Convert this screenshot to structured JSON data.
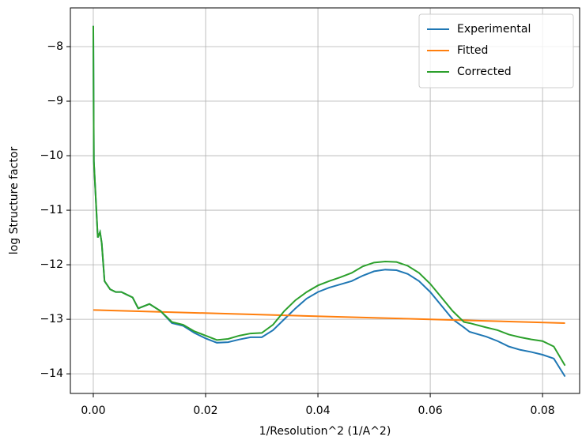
{
  "chart_data": {
    "type": "line",
    "xlabel": "1/Resolution^2 (1/A^2)",
    "ylabel": "log Structure factor",
    "xlim": [
      -0.00408,
      0.0866
    ],
    "ylim": [
      -14.36,
      -7.29
    ],
    "xticks": [
      {
        "value": 0,
        "label": "0.00"
      },
      {
        "value": 0.02,
        "label": "0.02"
      },
      {
        "value": 0.04,
        "label": "0.04"
      },
      {
        "value": 0.06,
        "label": "0.06"
      },
      {
        "value": 0.08,
        "label": "0.08"
      }
    ],
    "yticks": [
      {
        "value": -14,
        "label": "−14"
      },
      {
        "value": -13,
        "label": "−13"
      },
      {
        "value": -12,
        "label": "−12"
      },
      {
        "value": -11,
        "label": "−11"
      },
      {
        "value": -10,
        "label": "−10"
      },
      {
        "value": -9,
        "label": "−9"
      },
      {
        "value": -8,
        "label": "−8"
      }
    ],
    "grid": true,
    "legend": "upper right",
    "series": [
      {
        "name": "Experimental",
        "color": "#1f77b4",
        "x": [
          0,
          0.0001,
          0.0008,
          0.0012,
          0.0015,
          0.002,
          0.003,
          0.004,
          0.005,
          0.006,
          0.007,
          0.008,
          0.01,
          0.012,
          0.014,
          0.016,
          0.018,
          0.02,
          0.022,
          0.024,
          0.026,
          0.028,
          0.03,
          0.032,
          0.034,
          0.036,
          0.038,
          0.04,
          0.042,
          0.044,
          0.046,
          0.048,
          0.05,
          0.052,
          0.054,
          0.056,
          0.058,
          0.06,
          0.062,
          0.064,
          0.066,
          0.067,
          0.07,
          0.072,
          0.074,
          0.076,
          0.078,
          0.08,
          0.082,
          0.084
        ],
        "values": [
          -7.62,
          -10.1,
          -11.5,
          -11.4,
          -11.6,
          -12.3,
          -12.45,
          -12.5,
          -12.5,
          -12.55,
          -12.6,
          -12.8,
          -12.72,
          -12.85,
          -13.07,
          -13.12,
          -13.25,
          -13.35,
          -13.43,
          -13.42,
          -13.37,
          -13.33,
          -13.33,
          -13.2,
          -13.0,
          -12.8,
          -12.62,
          -12.5,
          -12.42,
          -12.36,
          -12.3,
          -12.2,
          -12.12,
          -12.09,
          -12.1,
          -12.17,
          -12.3,
          -12.5,
          -12.75,
          -13.0,
          -13.15,
          -13.23,
          -13.32,
          -13.4,
          -13.5,
          -13.56,
          -13.6,
          -13.65,
          -13.72,
          -14.05
        ]
      },
      {
        "name": "Fitted",
        "color": "#ff7f0e",
        "x": [
          0,
          0.084
        ],
        "values": [
          -12.83,
          -13.07
        ]
      },
      {
        "name": "Corrected",
        "color": "#2ca02c",
        "x": [
          0,
          0.0001,
          0.0008,
          0.0012,
          0.0015,
          0.002,
          0.003,
          0.004,
          0.005,
          0.006,
          0.007,
          0.008,
          0.01,
          0.012,
          0.014,
          0.016,
          0.018,
          0.02,
          0.022,
          0.024,
          0.026,
          0.028,
          0.03,
          0.032,
          0.034,
          0.036,
          0.038,
          0.04,
          0.042,
          0.044,
          0.046,
          0.048,
          0.05,
          0.052,
          0.054,
          0.056,
          0.058,
          0.06,
          0.062,
          0.064,
          0.066,
          0.067,
          0.07,
          0.072,
          0.074,
          0.076,
          0.078,
          0.08,
          0.082,
          0.084
        ],
        "values": [
          -7.62,
          -10.1,
          -11.5,
          -11.4,
          -11.6,
          -12.3,
          -12.45,
          -12.5,
          -12.5,
          -12.55,
          -12.6,
          -12.8,
          -12.72,
          -12.85,
          -13.05,
          -13.1,
          -13.22,
          -13.3,
          -13.38,
          -13.36,
          -13.3,
          -13.26,
          -13.25,
          -13.1,
          -12.85,
          -12.65,
          -12.5,
          -12.38,
          -12.3,
          -12.23,
          -12.15,
          -12.03,
          -11.96,
          -11.94,
          -11.95,
          -12.02,
          -12.15,
          -12.35,
          -12.6,
          -12.85,
          -13.05,
          -13.07,
          -13.15,
          -13.2,
          -13.28,
          -13.33,
          -13.37,
          -13.4,
          -13.5,
          -13.85
        ]
      }
    ]
  }
}
